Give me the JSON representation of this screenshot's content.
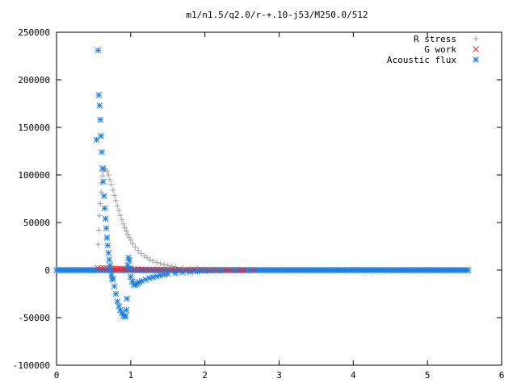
{
  "chart_data": {
    "type": "scatter",
    "title": "m1/n1.5/q2.0/r-+.10-j53/M250.0/512",
    "xlabel": "",
    "ylabel": "",
    "xlim": [
      0,
      6
    ],
    "ylim": [
      -100000,
      250000
    ],
    "x_ticks": [
      0,
      1,
      2,
      3,
      4,
      5,
      6
    ],
    "x_tick_labels": [
      "0",
      "1",
      "2",
      "3",
      "4",
      "5",
      "6"
    ],
    "y_ticks": [
      -100000,
      -50000,
      0,
      50000,
      100000,
      150000,
      200000,
      250000
    ],
    "y_tick_labels": [
      "-100000",
      "-50000",
      "0",
      "50000",
      "100000",
      "150000",
      "200000",
      "250000"
    ],
    "grid": false,
    "legend_position": "top-right",
    "series": [
      {
        "name": "R stress",
        "marker": "+",
        "color": "#a0a0a0",
        "x": [
          0.56,
          0.57,
          0.58,
          0.59,
          0.6,
          0.61,
          0.62,
          0.63,
          0.64,
          0.65,
          0.66,
          0.68,
          0.7,
          0.72,
          0.74,
          0.76,
          0.78,
          0.8,
          0.82,
          0.84,
          0.86,
          0.88,
          0.9,
          0.92,
          0.94,
          0.96,
          0.98,
          1.0,
          1.03,
          1.06,
          1.1,
          1.14,
          1.18,
          1.22,
          1.26,
          1.3,
          1.35,
          1.4,
          1.45,
          1.5,
          1.55,
          1.6,
          1.7,
          1.8,
          1.9,
          2.0,
          2.1,
          2.2,
          2.4,
          2.6
        ],
        "y": [
          27000,
          42000,
          57000,
          70000,
          82000,
          92000,
          99000,
          104000,
          106000,
          106500,
          106000,
          104000,
          100000,
          95000,
          90000,
          84000,
          78500,
          73000,
          67500,
          62500,
          57500,
          53000,
          48500,
          44500,
          41000,
          37500,
          34500,
          31500,
          27500,
          24000,
          20500,
          17500,
          15000,
          13000,
          11000,
          9500,
          8000,
          6800,
          5800,
          4900,
          4100,
          3500,
          2500,
          1800,
          1300,
          900,
          600,
          400,
          200,
          100
        ]
      },
      {
        "name": "G work",
        "marker": "x",
        "color": "#ff2020",
        "x": [
          0.56,
          0.6,
          0.64,
          0.68,
          0.72,
          0.76,
          0.8,
          0.84,
          0.88,
          0.92,
          0.96,
          1.0,
          1.05,
          1.1,
          1.15,
          1.2,
          1.25,
          1.3,
          1.35,
          1.4,
          1.45,
          1.5,
          1.55,
          1.6,
          1.65,
          1.7,
          1.75,
          1.8,
          1.85,
          1.9,
          1.95,
          2.0,
          2.05,
          2.1,
          2.15,
          2.2,
          2.25,
          2.3,
          2.35,
          2.4,
          2.45,
          2.5,
          2.55,
          2.6,
          2.65
        ],
        "y": [
          2000,
          2000,
          1900,
          1800,
          1700,
          1600,
          1500,
          1400,
          1300,
          1200,
          1100,
          1000,
          900,
          800,
          700,
          650,
          600,
          550,
          500,
          450,
          400,
          380,
          350,
          320,
          300,
          280,
          260,
          240,
          220,
          200,
          190,
          180,
          170,
          160,
          150,
          140,
          130,
          120,
          110,
          100,
          90,
          80,
          70,
          60,
          50
        ]
      },
      {
        "name": "Acoustic flux",
        "marker": "*",
        "color": "#1a7fe0",
        "x": [
          0.54,
          0.56,
          0.57,
          0.58,
          0.59,
          0.6,
          0.61,
          0.62,
          0.63,
          0.64,
          0.65,
          0.66,
          0.67,
          0.68,
          0.69,
          0.7,
          0.71,
          0.72,
          0.73,
          0.74,
          0.75,
          0.76,
          0.78,
          0.8,
          0.82,
          0.84,
          0.86,
          0.88,
          0.9,
          0.92,
          0.93,
          0.94,
          0.95,
          0.96,
          0.97,
          0.98,
          0.99,
          1.0,
          1.02,
          1.04,
          1.06,
          1.08,
          1.1,
          1.12,
          1.15,
          1.2,
          1.25,
          1.3,
          1.35,
          1.4,
          1.45,
          1.5,
          1.6,
          1.7,
          1.8,
          1.9,
          2.0,
          2.1,
          2.2,
          2.4,
          2.6
        ],
        "y": [
          137000,
          231000,
          184000,
          173000,
          158000,
          141000,
          124000,
          107000,
          93000,
          78000,
          65000,
          54000,
          44000,
          34000,
          26000,
          18000,
          11000,
          5000,
          0,
          -5000,
          -9000,
          -10000,
          -17000,
          -25000,
          -33000,
          -38000,
          -42000,
          -45000,
          -48000,
          -49000,
          -48000,
          -42000,
          -30000,
          5000,
          13000,
          10000,
          2000,
          -7000,
          -12000,
          -15000,
          -16000,
          -14500,
          -13500,
          -12500,
          -11500,
          -10000,
          -8500,
          -7500,
          -6500,
          -5500,
          -4800,
          -4200,
          -3200,
          -2400,
          -1800,
          -1300,
          -900,
          -600,
          -400,
          -200,
          -100
        ]
      }
    ],
    "baseline_band": {
      "description_series": "Acoustic flux",
      "x_range": [
        0.0,
        5.55
      ],
      "y": 0
    }
  }
}
